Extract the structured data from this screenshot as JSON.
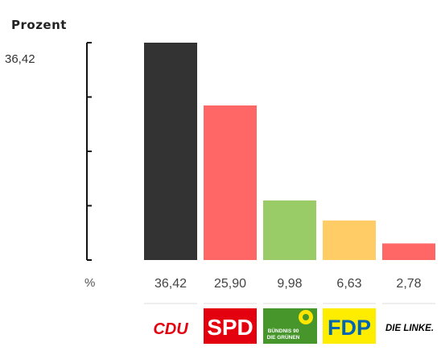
{
  "chart_data": {
    "type": "bar",
    "title": "Prozent",
    "unit_label": "%",
    "ylim": [
      0,
      36.42
    ],
    "y_max_label": "36,42",
    "categories": [
      "CDU",
      "SPD",
      "Bündnis 90 / Die Grünen",
      "FDP",
      "Die Linke"
    ],
    "values": [
      36.42,
      25.9,
      9.98,
      6.63,
      2.78
    ],
    "value_labels": [
      "36,42",
      "25,90",
      "9,98",
      "6,63",
      "2,78"
    ],
    "colors": [
      "#333333",
      "#ff6666",
      "#99cc66",
      "#ffcc66",
      "#ff6666"
    ]
  },
  "logos": {
    "cdu": {
      "text": "CDU",
      "color": "#e3000f"
    },
    "spd": {
      "text": "SPD",
      "bg": "#e3000f",
      "color": "#ffffff"
    },
    "gruene": {
      "line1": "BÜNDNIS 90",
      "line2": "DIE GRÜNEN",
      "bg": "#46962b",
      "color": "#ffffff"
    },
    "fdp": {
      "text": "FDP",
      "bg": "#ffed00",
      "color": "#0066b3"
    },
    "linke": {
      "text": "DIE LINKE.",
      "color": "#000000"
    }
  }
}
